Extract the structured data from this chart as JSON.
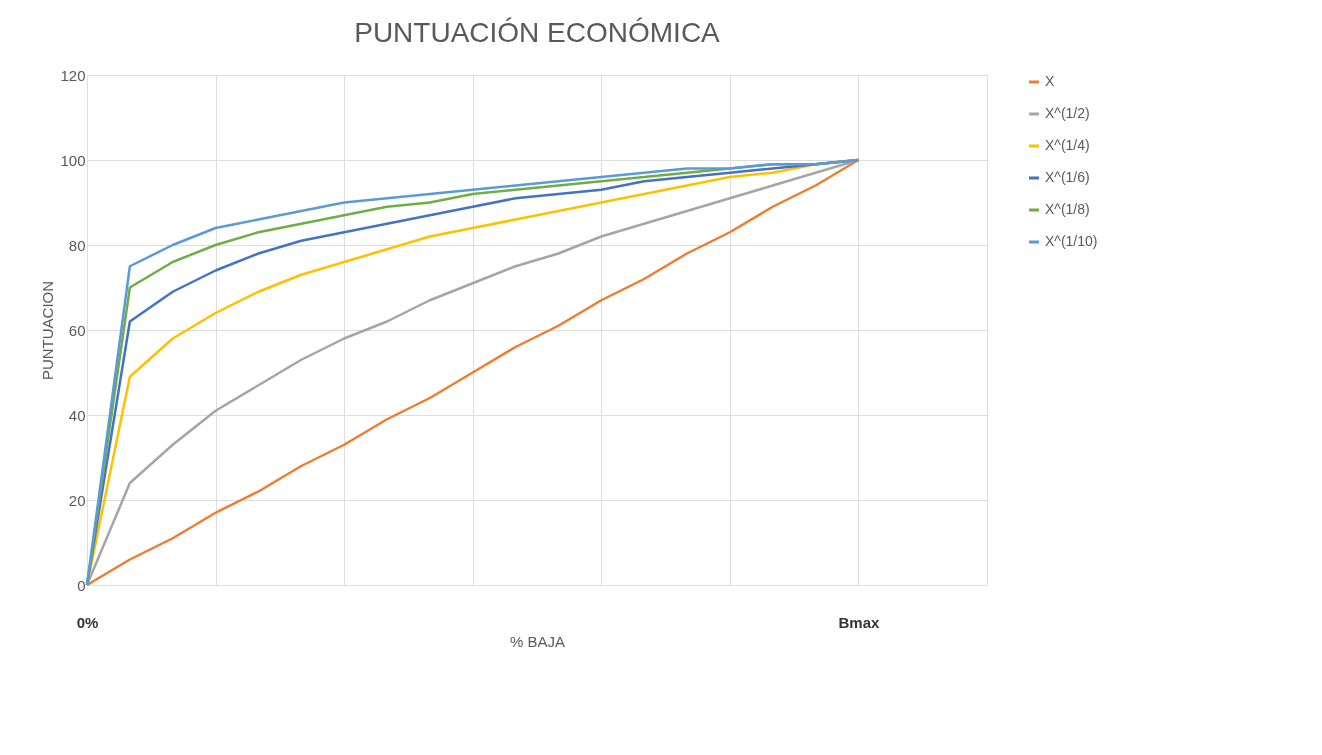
{
  "chart_data": {
    "type": "line",
    "title": "PUNTUACIÓN ECONÓMICA",
    "xlabel": "% BAJA",
    "ylabel": "PUNTUACION",
    "categories": [
      "0%",
      null,
      null,
      null,
      null,
      null,
      null,
      null,
      null,
      null,
      null,
      null,
      null,
      null,
      null,
      null,
      null,
      null,
      "Bmax",
      null,
      null,
      null
    ],
    "ylim": [
      0,
      120
    ],
    "yticks": [
      0,
      20,
      40,
      60,
      80,
      100,
      120
    ],
    "grid": true,
    "legend": "right",
    "marker": "none",
    "line_style": "solid",
    "series": [
      {
        "name": "X",
        "color": "#ed7d31",
        "values": [
          0,
          6,
          11,
          17,
          22,
          28,
          33,
          39,
          44,
          50,
          56,
          61,
          67,
          72,
          78,
          83,
          89,
          94,
          100,
          null,
          null,
          null
        ]
      },
      {
        "name": "X^(1/2)",
        "color": "#a5a5a5",
        "values": [
          0,
          24,
          33,
          41,
          47,
          53,
          58,
          62,
          67,
          71,
          75,
          78,
          82,
          85,
          88,
          91,
          94,
          97,
          100,
          null,
          null,
          null
        ]
      },
      {
        "name": "X^(1/4)",
        "color": "#ffc000",
        "values": [
          0,
          49,
          58,
          64,
          69,
          73,
          76,
          79,
          82,
          84,
          86,
          88,
          90,
          92,
          94,
          96,
          97,
          99,
          100,
          null,
          null,
          null
        ]
      },
      {
        "name": "X^(1/6)",
        "color": "#4472c4",
        "values": [
          0,
          62,
          69,
          74,
          78,
          81,
          83,
          85,
          87,
          89,
          91,
          92,
          93,
          95,
          96,
          97,
          98,
          99,
          100,
          null,
          null,
          null
        ]
      },
      {
        "name": "X^(1/8)",
        "color": "#70ad47",
        "values": [
          0,
          70,
          76,
          80,
          83,
          85,
          87,
          89,
          90,
          92,
          93,
          94,
          95,
          96,
          97,
          98,
          99,
          99,
          100,
          null,
          null,
          null
        ]
      },
      {
        "name": "X^(1/10)",
        "color": "#5b9bd5",
        "values": [
          0,
          75,
          80,
          84,
          86,
          88,
          90,
          91,
          92,
          93,
          94,
          95,
          96,
          97,
          98,
          98,
          99,
          99,
          100,
          null,
          null,
          null
        ]
      }
    ]
  }
}
